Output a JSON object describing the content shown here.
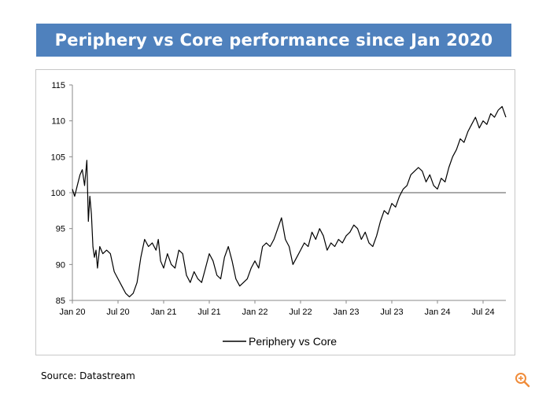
{
  "header": {
    "title": "Periphery vs Core performance since Jan 2020"
  },
  "footer": {
    "source": "Source: Datastream"
  },
  "icons": {
    "zoom": "zoom-in-icon"
  },
  "colors": {
    "banner": "#4f81bd",
    "series": "#000000",
    "reference_line": "#555555",
    "axis": "#888888"
  },
  "chart_data": {
    "type": "line",
    "title": "Periphery vs Core performance since Jan 2020",
    "xlabel": "",
    "ylabel": "",
    "x_range": [
      0,
      57
    ],
    "ylim": [
      85,
      115
    ],
    "y_ticks": [
      85,
      90,
      95,
      100,
      105,
      110,
      115
    ],
    "x_ticks": [
      {
        "label": "Jan 20",
        "x": 0
      },
      {
        "label": "Jul 20",
        "x": 6
      },
      {
        "label": "Jan 21",
        "x": 12
      },
      {
        "label": "Jul 21",
        "x": 18
      },
      {
        "label": "Jan 22",
        "x": 24
      },
      {
        "label": "Jul 22",
        "x": 30
      },
      {
        "label": "Jan 23",
        "x": 36
      },
      {
        "label": "Jul 23",
        "x": 42
      },
      {
        "label": "Jan 24",
        "x": 48
      },
      {
        "label": "Jul 24",
        "x": 54
      }
    ],
    "reference_line": 100,
    "legend": {
      "position": "bottom-center",
      "entries": [
        "Periphery vs Core"
      ]
    },
    "series": [
      {
        "name": "Periphery vs Core",
        "x": [
          0,
          0.3,
          0.6,
          1.0,
          1.3,
          1.6,
          1.9,
          2.1,
          2.3,
          2.5,
          2.7,
          2.9,
          3.1,
          3.3,
          3.6,
          4.0,
          4.5,
          5.0,
          5.5,
          6.0,
          6.5,
          7.0,
          7.5,
          8.0,
          8.5,
          9.0,
          9.5,
          10.0,
          10.5,
          11.0,
          11.3,
          11.6,
          12.0,
          12.5,
          13.0,
          13.5,
          14.0,
          14.5,
          15.0,
          15.5,
          16.0,
          16.5,
          17.0,
          17.5,
          18.0,
          18.5,
          19.0,
          19.5,
          20.0,
          20.5,
          21.0,
          21.5,
          22.0,
          22.5,
          23.0,
          23.5,
          24.0,
          24.5,
          25.0,
          25.5,
          26.0,
          26.5,
          27.0,
          27.5,
          28.0,
          28.5,
          29.0,
          29.5,
          30.0,
          30.5,
          31.0,
          31.5,
          32.0,
          32.5,
          33.0,
          33.5,
          34.0,
          34.5,
          35.0,
          35.5,
          36.0,
          36.5,
          37.0,
          37.5,
          38.0,
          38.5,
          39.0,
          39.5,
          40.0,
          40.5,
          41.0,
          41.5,
          42.0,
          42.5,
          43.0,
          43.5,
          44.0,
          44.5,
          45.0,
          45.5,
          46.0,
          46.5,
          47.0,
          47.5,
          48.0,
          48.5,
          49.0,
          49.5,
          50.0,
          50.5,
          51.0,
          51.5,
          52.0,
          52.5,
          53.0,
          53.5,
          54.0,
          54.5,
          55.0,
          55.5,
          56.0,
          56.5,
          57.0
        ],
        "values": [
          100.5,
          99.5,
          100.8,
          102.5,
          103.2,
          101.0,
          104.5,
          96.0,
          99.5,
          97.0,
          92.5,
          91.0,
          92.0,
          89.5,
          92.5,
          91.5,
          92.0,
          91.5,
          89.0,
          88.0,
          87.0,
          86.0,
          85.5,
          86.0,
          87.5,
          91.0,
          93.5,
          92.5,
          93.0,
          92.0,
          93.5,
          90.5,
          89.5,
          91.5,
          90.0,
          89.5,
          92.0,
          91.5,
          88.5,
          87.5,
          89.0,
          88.0,
          87.5,
          89.5,
          91.5,
          90.5,
          88.5,
          88.0,
          91.0,
          92.5,
          90.5,
          88.0,
          87.0,
          87.5,
          88.0,
          89.5,
          90.5,
          89.5,
          92.5,
          93.0,
          92.5,
          93.5,
          95.0,
          96.5,
          93.5,
          92.5,
          90.0,
          91.0,
          92.0,
          93.0,
          92.5,
          94.5,
          93.5,
          95.0,
          94.0,
          92.0,
          93.0,
          92.5,
          93.5,
          93.0,
          94.0,
          94.5,
          95.5,
          95.0,
          93.5,
          94.5,
          93.0,
          92.5,
          94.0,
          96.0,
          97.5,
          97.0,
          98.5,
          98.0,
          99.5,
          100.5,
          101.0,
          102.5,
          103.0,
          103.5,
          103.0,
          101.5,
          102.5,
          101.0,
          100.5,
          102.0,
          101.5,
          103.5,
          105.0,
          106.0,
          107.5,
          107.0,
          108.5,
          109.5,
          110.5,
          109.0,
          110.0,
          109.5,
          111.0,
          110.5,
          111.5,
          112.0,
          110.5
        ]
      }
    ]
  }
}
